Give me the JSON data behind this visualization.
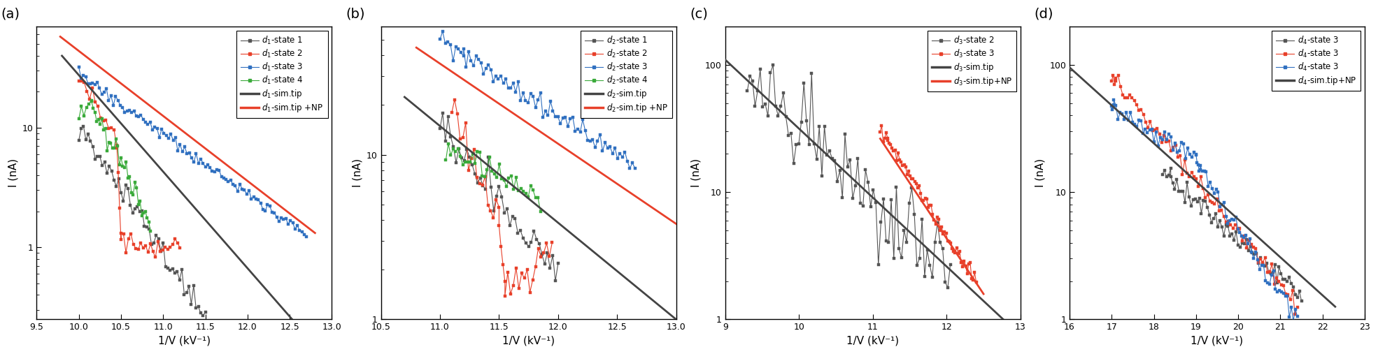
{
  "panels": [
    {
      "label": "(a)",
      "xlabel": "1/V (kV⁻¹)",
      "ylabel": "I (nA)",
      "xlim": [
        9.5,
        13.0
      ],
      "ylim_log": [
        0.25,
        70
      ],
      "xticks": [
        9.5,
        10.0,
        10.5,
        11.0,
        11.5,
        12.0,
        12.5,
        13.0
      ],
      "xticklabels": [
        "9.5",
        "10.0",
        "10.5",
        "11.0",
        "11.5",
        "12.0",
        "12.5",
        "13.0"
      ],
      "series": [
        {
          "label": "$d_1$-state 1",
          "color": "#555555",
          "lw": 0.8,
          "marker": "s",
          "ms": 2.5,
          "segments": [
            {
              "x0": 10.0,
              "x1": 11.5,
              "y0_log": 1.0,
              "y1_log": -0.55,
              "noise": 0.06,
              "n": 55
            }
          ]
        },
        {
          "label": "$d_1$-state 2",
          "color": "#e8402a",
          "lw": 0.8,
          "marker": "s",
          "ms": 2.5,
          "segments": [
            {
              "x0": 10.0,
              "x1": 10.45,
              "y0_log": 1.44,
              "y1_log": 0.88,
              "noise": 0.04,
              "n": 15
            },
            {
              "x0": 10.45,
              "x1": 10.5,
              "y0_log": 0.88,
              "y1_log": 0.05,
              "noise": 0.02,
              "n": 4
            },
            {
              "x0": 10.5,
              "x1": 11.2,
              "y0_log": 0.05,
              "y1_log": -0.02,
              "noise": 0.05,
              "n": 25
            }
          ]
        },
        {
          "label": "$d_1$-state 3",
          "color": "#3070c0",
          "lw": 0.8,
          "marker": "s",
          "ms": 2.5,
          "segments": [
            {
              "x0": 10.0,
              "x1": 12.7,
              "y0_log": 1.45,
              "y1_log": 0.1,
              "noise": 0.025,
              "n": 100
            }
          ]
        },
        {
          "label": "$d_1$-state 4",
          "color": "#3aaa3a",
          "lw": 0.8,
          "marker": "s",
          "ms": 2.5,
          "segments": [
            {
              "x0": 10.0,
              "x1": 10.15,
              "y0_log": 1.08,
              "y1_log": 1.2,
              "noise": 0.03,
              "n": 6
            },
            {
              "x0": 10.15,
              "x1": 10.85,
              "y0_log": 1.2,
              "y1_log": 0.18,
              "noise": 0.07,
              "n": 35
            }
          ]
        },
        {
          "label": "$d_1$-sim.tip",
          "color": "#444444",
          "lw": 2.0,
          "marker": null,
          "ms": 0,
          "segments": [
            {
              "x0": 9.8,
              "x1": 12.8,
              "y0_log": 1.6,
              "y1_log": -0.82,
              "noise": 0,
              "n": 200
            }
          ]
        },
        {
          "label": "$d_1$-sim.tip +NP",
          "color": "#e8402a",
          "lw": 2.0,
          "marker": null,
          "ms": 0,
          "segments": [
            {
              "x0": 9.78,
              "x1": 12.8,
              "y0_log": 1.76,
              "y1_log": 0.12,
              "noise": 0,
              "n": 200
            }
          ]
        }
      ]
    },
    {
      "label": "(b)",
      "xlabel": "1/V (kV⁻¹)",
      "ylabel": "I (nA)",
      "xlim": [
        10.5,
        13.0
      ],
      "ylim_log": [
        1.0,
        60
      ],
      "xticks": [
        10.5,
        11.0,
        11.5,
        12.0,
        12.5,
        13.0
      ],
      "xticklabels": [
        "10.5",
        "11.0",
        "11.5",
        "12.0",
        "12.5",
        "13.0"
      ],
      "series": [
        {
          "label": "$d_2$-state 1",
          "color": "#555555",
          "lw": 0.8,
          "marker": "s",
          "ms": 2.5,
          "segments": [
            {
              "x0": 11.0,
              "x1": 12.0,
              "y0_log": 1.15,
              "y1_log": 0.28,
              "noise": 0.06,
              "n": 45
            }
          ]
        },
        {
          "label": "$d_2$-state 2",
          "color": "#e8402a",
          "lw": 0.8,
          "marker": "s",
          "ms": 2.5,
          "segments": [
            {
              "x0": 11.1,
              "x1": 11.5,
              "y0_log": 1.32,
              "y1_log": 0.55,
              "noise": 0.06,
              "n": 18
            },
            {
              "x0": 11.5,
              "x1": 11.55,
              "y0_log": 0.55,
              "y1_log": 0.2,
              "noise": 0.02,
              "n": 4
            },
            {
              "x0": 11.55,
              "x1": 11.95,
              "y0_log": 0.2,
              "y1_log": 0.45,
              "noise": 0.06,
              "n": 18
            }
          ]
        },
        {
          "label": "$d_2$-state 3",
          "color": "#3070c0",
          "lw": 0.8,
          "marker": "s",
          "ms": 2.5,
          "segments": [
            {
              "x0": 11.0,
              "x1": 11.2,
              "y0_log": 1.72,
              "y1_log": 1.6,
              "noise": 0.03,
              "n": 10
            },
            {
              "x0": 11.2,
              "x1": 12.65,
              "y0_log": 1.6,
              "y1_log": 0.95,
              "noise": 0.03,
              "n": 70
            }
          ]
        },
        {
          "label": "$d_2$-state 4",
          "color": "#3aaa3a",
          "lw": 0.8,
          "marker": "s",
          "ms": 2.5,
          "segments": [
            {
              "x0": 11.05,
              "x1": 11.85,
              "y0_log": 1.05,
              "y1_log": 0.75,
              "noise": 0.05,
              "n": 40
            }
          ]
        },
        {
          "label": "$d_2$-sim.tip",
          "color": "#444444",
          "lw": 2.0,
          "marker": null,
          "ms": 0,
          "segments": [
            {
              "x0": 10.7,
              "x1": 13.0,
              "y0_log": 1.35,
              "y1_log": 0.0,
              "noise": 0,
              "n": 200
            }
          ]
        },
        {
          "label": "$d_2$-sim.tip +NP",
          "color": "#e8402a",
          "lw": 2.0,
          "marker": null,
          "ms": 0,
          "segments": [
            {
              "x0": 10.8,
              "x1": 13.0,
              "y0_log": 1.65,
              "y1_log": 0.58,
              "noise": 0,
              "n": 200
            }
          ]
        }
      ]
    },
    {
      "label": "(c)",
      "xlabel": "1/V (kV⁻¹)",
      "ylabel": "I (nA)",
      "xlim": [
        9.0,
        13.0
      ],
      "ylim_log": [
        1.0,
        200
      ],
      "xticks": [
        9,
        10,
        11,
        12,
        13
      ],
      "xticklabels": [
        "9",
        "10",
        "11",
        "12",
        "13"
      ],
      "series": [
        {
          "label": "$d_3$-state 2",
          "color": "#555555",
          "lw": 0.8,
          "marker": "s",
          "ms": 2.5,
          "segments": [
            {
              "x0": 9.3,
              "x1": 12.05,
              "y0_log": 1.88,
              "y1_log": 0.35,
              "noise": 0.18,
              "n": 80
            }
          ]
        },
        {
          "label": "$d_3$-state 3",
          "color": "#e8402a",
          "lw": 0.8,
          "marker": "s",
          "ms": 2.5,
          "segments": [
            {
              "x0": 11.1,
              "x1": 11.2,
              "y0_log": 1.5,
              "y1_log": 1.42,
              "noise": 0.03,
              "n": 6
            },
            {
              "x0": 11.2,
              "x1": 12.4,
              "y0_log": 1.42,
              "y1_log": 0.28,
              "noise": 0.03,
              "n": 60
            }
          ]
        },
        {
          "label": "$d_3$-sim.tip",
          "color": "#444444",
          "lw": 2.0,
          "marker": null,
          "ms": 0,
          "segments": [
            {
              "x0": 9.0,
              "x1": 13.1,
              "y0_log": 2.04,
              "y1_log": -0.18,
              "noise": 0,
              "n": 200
            }
          ]
        },
        {
          "label": "$d_3$-sim.tip+NP",
          "color": "#e8402a",
          "lw": 2.0,
          "marker": null,
          "ms": 0,
          "segments": [
            {
              "x0": 11.1,
              "x1": 12.5,
              "y0_log": 1.42,
              "y1_log": 0.2,
              "noise": 0,
              "n": 200
            }
          ]
        }
      ]
    },
    {
      "label": "(d)",
      "xlabel": "1/V (kV⁻¹)",
      "ylabel": "I (nA)",
      "xlim": [
        16.0,
        23.0
      ],
      "ylim_log": [
        1.0,
        200
      ],
      "xticks": [
        16,
        17,
        18,
        19,
        20,
        21,
        22,
        23
      ],
      "xticklabels": [
        "16",
        "17",
        "18",
        "19",
        "20",
        "21",
        "22",
        "23"
      ],
      "series": [
        {
          "label": "$d_4$-state 3",
          "color": "#555555",
          "lw": 0.8,
          "marker": "s",
          "ms": 2.5,
          "segments": [
            {
              "x0": 18.2,
              "x1": 18.4,
              "y0_log": 1.15,
              "y1_log": 1.15,
              "noise": 0.02,
              "n": 5
            },
            {
              "x0": 18.4,
              "x1": 21.5,
              "y0_log": 1.1,
              "y1_log": 0.18,
              "noise": 0.04,
              "n": 65
            }
          ]
        },
        {
          "label": "$d_4$-state 3",
          "color": "#e8402a",
          "lw": 0.8,
          "marker": "s",
          "ms": 2.5,
          "segments": [
            {
              "x0": 17.0,
              "x1": 17.1,
              "y0_log": 1.88,
              "y1_log": 1.88,
              "noise": 0.02,
              "n": 4
            },
            {
              "x0": 17.1,
              "x1": 21.4,
              "y0_log": 1.88,
              "y1_log": 0.1,
              "noise": 0.04,
              "n": 80
            }
          ]
        },
        {
          "label": "$d_4$-state 3",
          "color": "#3070c0",
          "lw": 0.8,
          "marker": "s",
          "ms": 2.5,
          "segments": [
            {
              "x0": 17.0,
              "x1": 17.05,
              "y0_log": 1.66,
              "y1_log": 1.66,
              "noise": 0.02,
              "n": 4
            },
            {
              "x0": 17.05,
              "x1": 19.0,
              "y0_log": 1.66,
              "y1_log": 1.28,
              "noise": 0.04,
              "n": 40
            },
            {
              "x0": 19.0,
              "x1": 19.1,
              "y0_log": 1.28,
              "y1_log": 1.18,
              "noise": 0.02,
              "n": 5
            },
            {
              "x0": 19.1,
              "x1": 21.4,
              "y0_log": 1.18,
              "y1_log": 0.0,
              "noise": 0.04,
              "n": 50
            }
          ]
        },
        {
          "label": "$d_4$-sim.tip+NP",
          "color": "#444444",
          "lw": 2.0,
          "marker": null,
          "ms": 0,
          "segments": [
            {
              "x0": 16.0,
              "x1": 22.3,
              "y0_log": 1.98,
              "y1_log": 0.1,
              "noise": 0,
              "n": 200
            }
          ]
        }
      ]
    }
  ],
  "bg_color": "#ffffff",
  "spine_color": "#000000",
  "tick_color": "#000000",
  "label_fontsize": 11,
  "tick_fontsize": 9,
  "legend_fontsize": 8.5,
  "panel_label_fontsize": 14
}
